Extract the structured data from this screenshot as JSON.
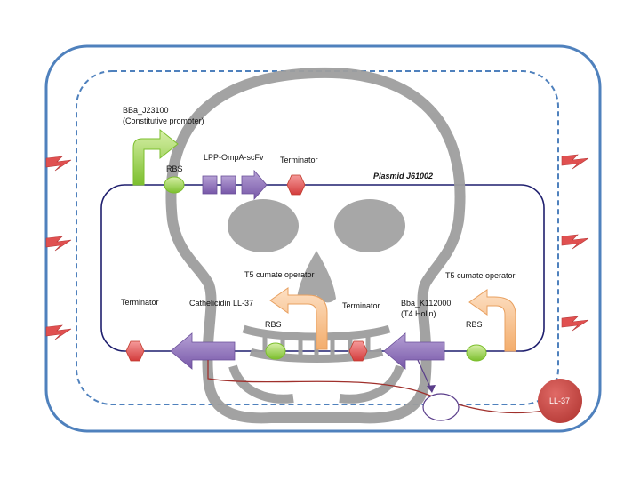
{
  "labels": {
    "promoter_id": "BBa_J23100",
    "promoter_desc": "(Constitutive promoter)",
    "rbs_top": "RBS",
    "lpp_gene": "LPP-OmpA-scFv",
    "terminator_top": "Terminator",
    "plasmid": "Plasmid J61002",
    "t5_left": "T5 cumate operator",
    "t5_right": "T5 cumate operator",
    "terminator_left": "Terminator",
    "cathelicidin": "Cathelicidin LL-37",
    "terminator_mid": "Terminator",
    "holin_id": "Bba_K112000",
    "holin_desc": "(T4 Holin)",
    "rbs_mid": "RBS",
    "rbs_right": "RBS",
    "ll37": "LL-37"
  },
  "colors": {
    "outer_membrane": "#4f81bd",
    "plasmid": "#1f1f6e",
    "promoter": "#92d050",
    "rbs": "#92d050",
    "gene": "#8064a2",
    "terminator": "#e05050",
    "operator": "#fac090",
    "ll37": "#c0504d",
    "lysis_line": "#a0302c",
    "skull": "#9e9e9e"
  },
  "icons": {
    "lightning": "lightning-bolt-icon",
    "skull": "skull-icon"
  }
}
